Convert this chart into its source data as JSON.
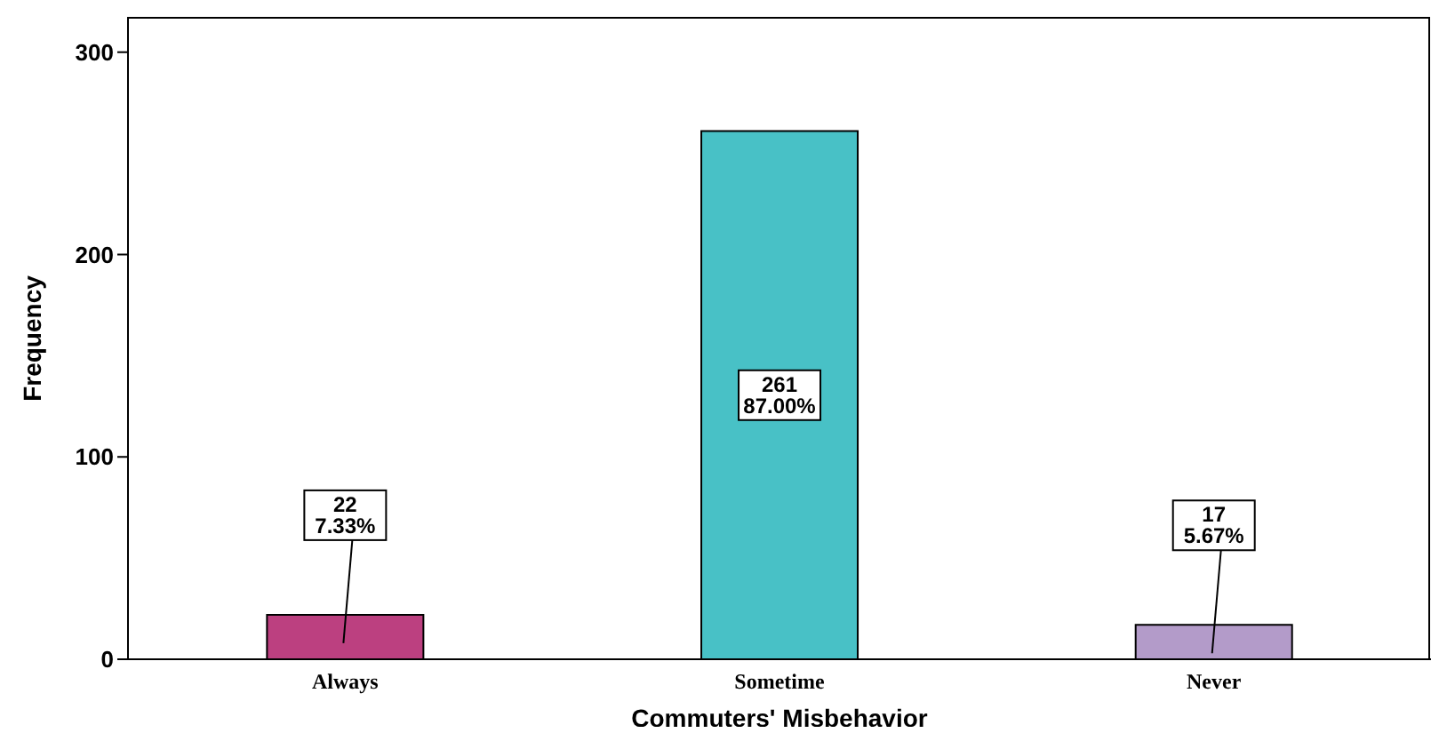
{
  "chart_data": {
    "type": "bar",
    "xlabel": "Commuters' Misbehavior",
    "ylabel": "Frequency",
    "categories": [
      "Always",
      "Sometime",
      "Never"
    ],
    "values": [
      22,
      261,
      17
    ],
    "colors": [
      "#bc4080",
      "#48c1c6",
      "#b39bc9"
    ],
    "value_labels": [
      "22\n7.33%",
      "261\n87.00%",
      "17\n5.67%"
    ],
    "ylim": [
      0,
      317
    ],
    "yticks": [
      0,
      100,
      200,
      300
    ],
    "grid": false,
    "legend": false
  }
}
